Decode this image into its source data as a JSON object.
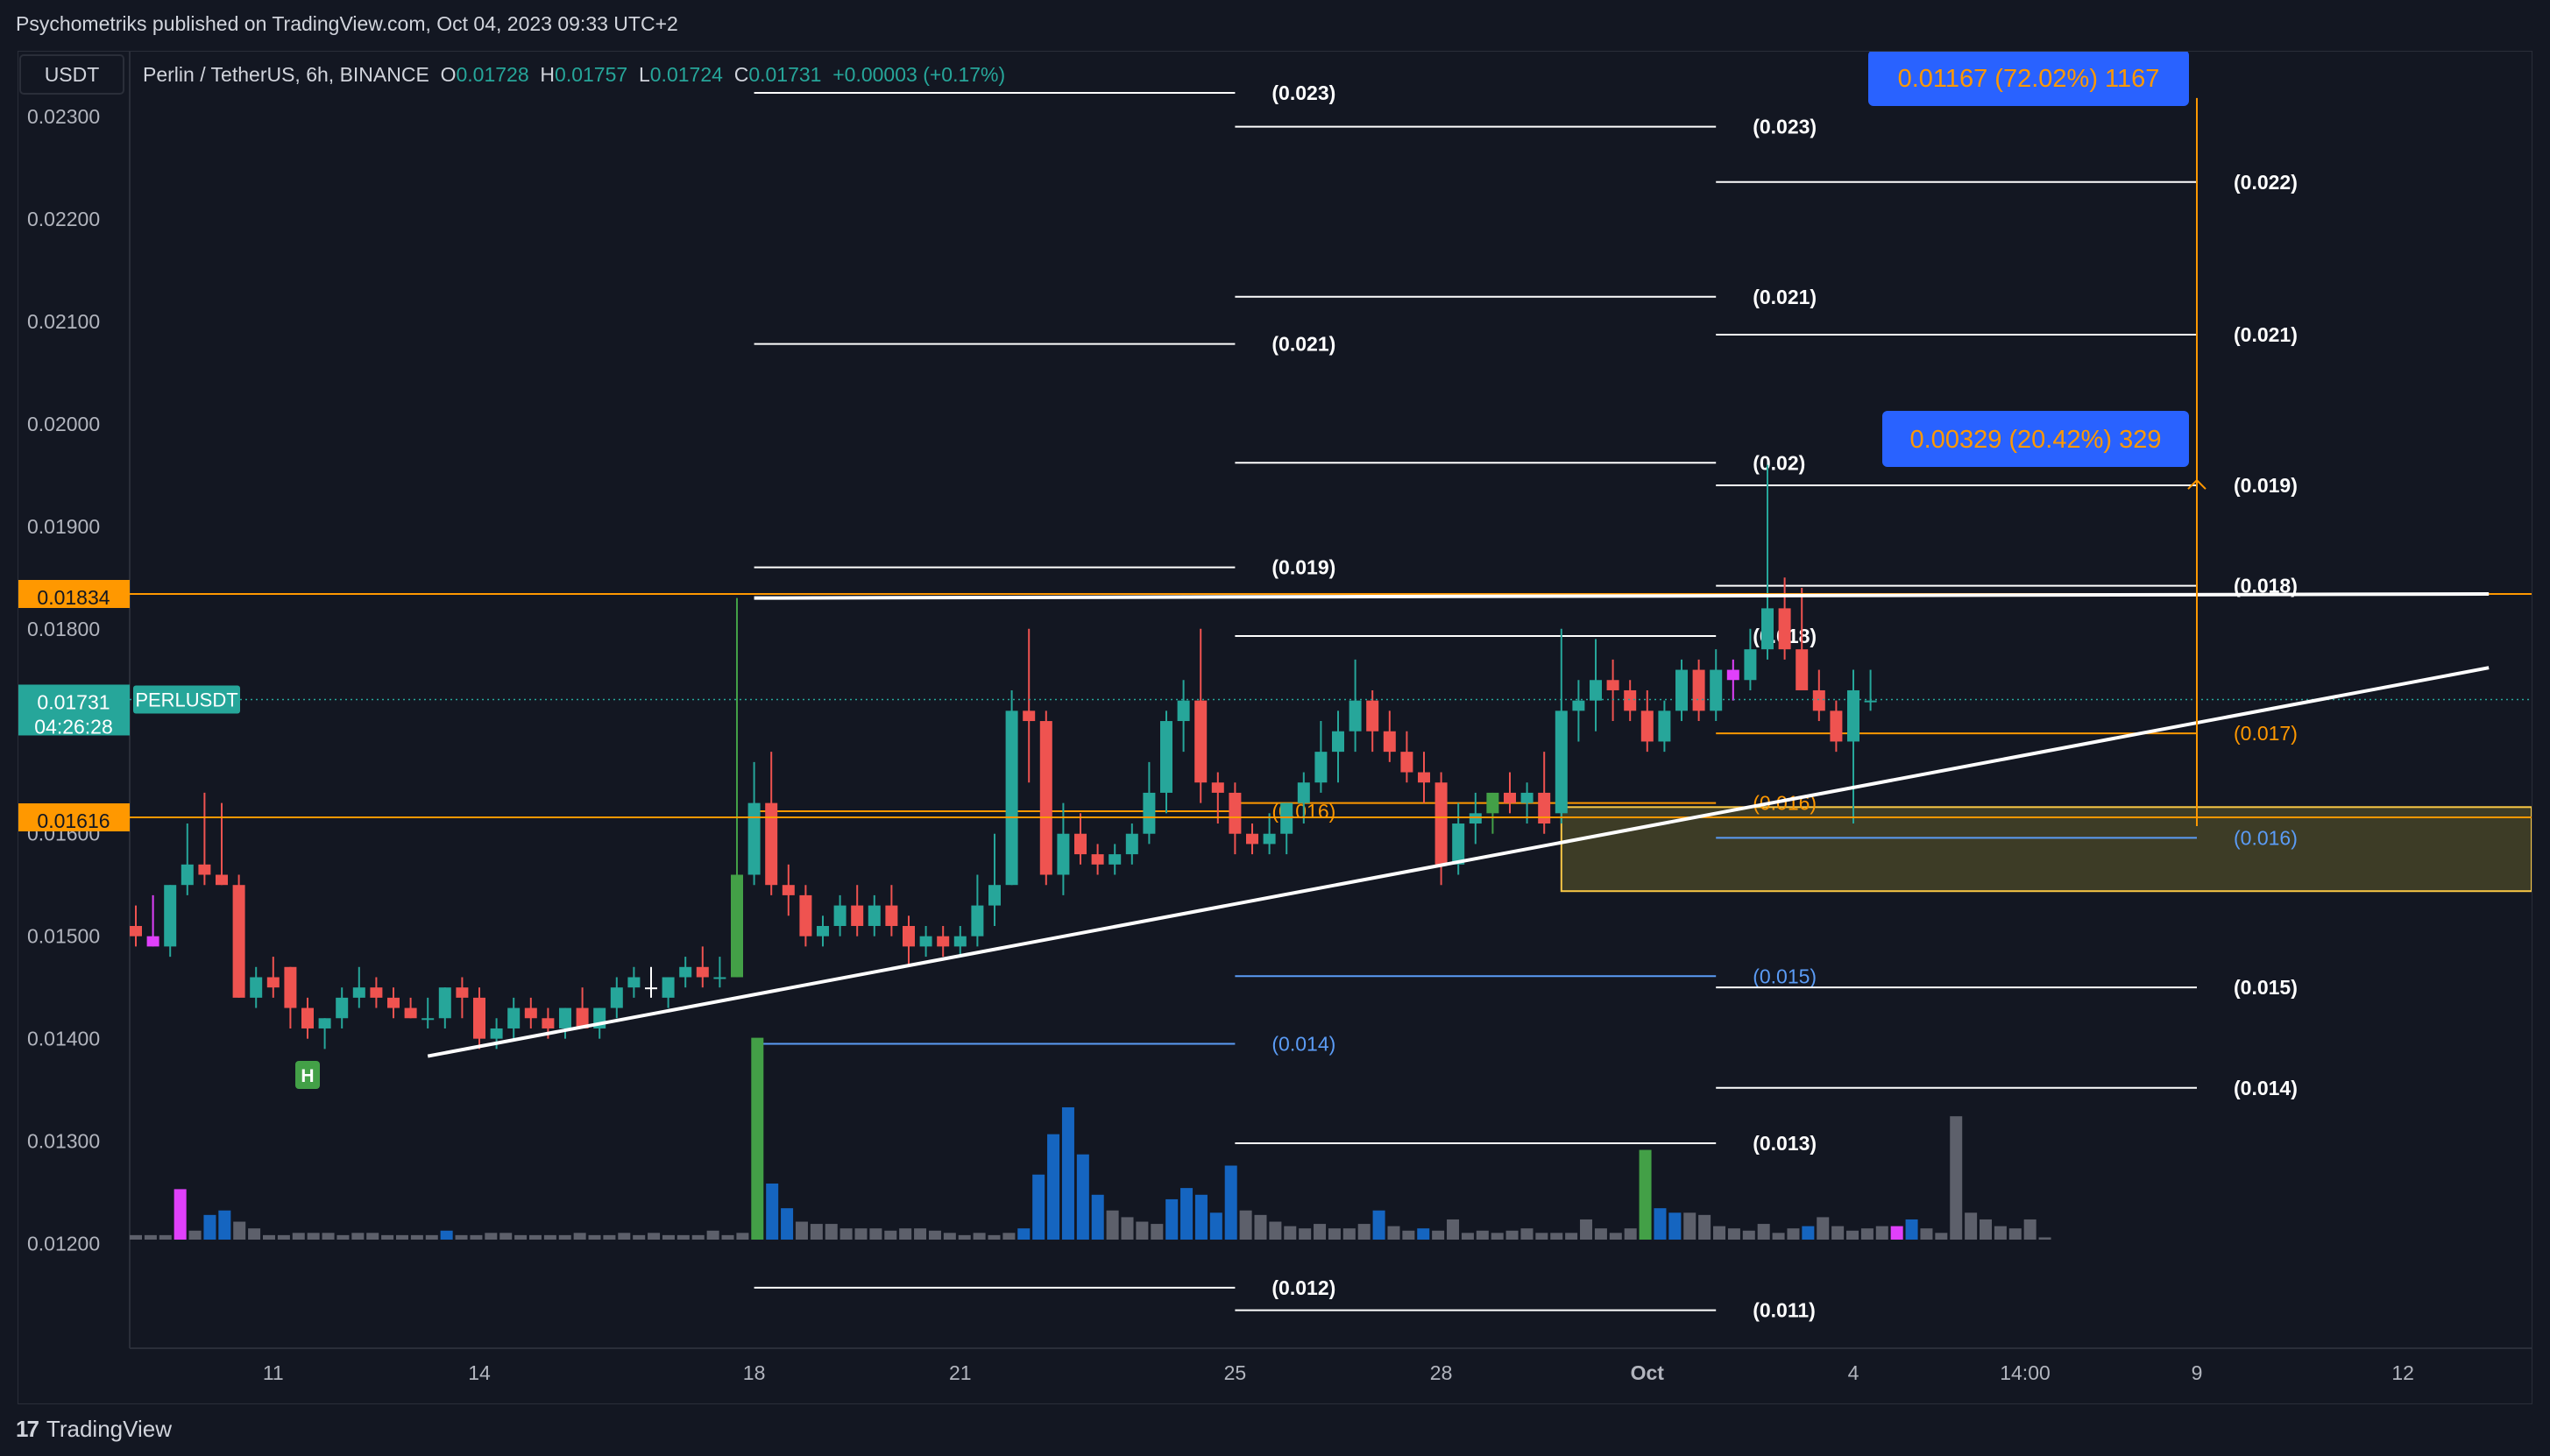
{
  "header": {
    "published": "Psychometriks published on TradingView.com, Oct 04, 2023 09:33 UTC+2"
  },
  "footer": {
    "brand": "TradingView",
    "brand_mark": "17"
  },
  "legend": {
    "currency_button": "USDT",
    "symbol": "Perlin / TetherUS, 6h, BINANCE",
    "o_label": "O",
    "o_value": "0.01728",
    "h_label": "H",
    "h_value": "0.01757",
    "l_label": "L",
    "l_value": "0.01724",
    "c_label": "C",
    "c_value": "0.01731",
    "change": "+0.00003 (+0.17%)"
  },
  "price_badges": {
    "current_price": "0.01731",
    "countdown": "04:26:28",
    "symbol_tag": "PERLUSDT",
    "level_high": "0.01834",
    "level_low": "0.01616"
  },
  "measure_labels": [
    {
      "text": "0.01167 (72.02%) 1167"
    },
    {
      "text": "0.00329 (20.42%) 329"
    }
  ],
  "marker": {
    "text": "H"
  },
  "colors": {
    "background": "#131722",
    "up": "#26a69a",
    "down": "#ef5350",
    "highlight_green": "#43a047",
    "highlight_magenta": "#e040fb",
    "volume_blue": "#1565c0",
    "volume_gray": "#5d606b",
    "orange": "#ff9800",
    "measure_blue": "#2962ff",
    "fib_blue": "#5b9cf6"
  },
  "chart_data": {
    "type": "candlestick",
    "symbol": "Perlin / TetherUS, 6h, BINANCE",
    "y_ticks": [
      "0.02300",
      "0.02200",
      "0.02100",
      "0.02000",
      "0.01900",
      "0.01800",
      "0.01600",
      "0.01500",
      "0.01400",
      "0.01300",
      "0.01200"
    ],
    "y_tick_values": [
      0.023,
      0.022,
      0.021,
      0.02,
      0.019,
      0.018,
      0.016,
      0.015,
      0.014,
      0.013,
      0.012
    ],
    "x_ticks": [
      {
        "label": "11",
        "bar": 8
      },
      {
        "label": "14",
        "bar": 20
      },
      {
        "label": "18",
        "bar": 36
      },
      {
        "label": "21",
        "bar": 48
      },
      {
        "label": "25",
        "bar": 64
      },
      {
        "label": "28",
        "bar": 76
      },
      {
        "label": "Oct",
        "bar": 88
      },
      {
        "label": "4",
        "bar": 100
      },
      {
        "label": "14:00",
        "bar": 110
      },
      {
        "label": "9",
        "bar": 120
      },
      {
        "label": "12",
        "bar": 132
      }
    ],
    "ohlc": [
      [
        0.0151,
        0.0153,
        0.0149,
        0.015
      ],
      [
        0.015,
        0.0154,
        0.0149,
        0.0149
      ],
      [
        0.0149,
        0.0155,
        0.0148,
        0.0155
      ],
      [
        0.0155,
        0.0161,
        0.0154,
        0.0157
      ],
      [
        0.0157,
        0.0164,
        0.0155,
        0.0156
      ],
      [
        0.0156,
        0.0163,
        0.0155,
        0.0155
      ],
      [
        0.0155,
        0.0156,
        0.0144,
        0.0144
      ],
      [
        0.0144,
        0.0147,
        0.0143,
        0.0146
      ],
      [
        0.0146,
        0.0148,
        0.0144,
        0.0145
      ],
      [
        0.0147,
        0.0147,
        0.0141,
        0.0143
      ],
      [
        0.0143,
        0.0144,
        0.014,
        0.0141
      ],
      [
        0.0141,
        0.0142,
        0.0139,
        0.0142
      ],
      [
        0.0142,
        0.0145,
        0.0141,
        0.0144
      ],
      [
        0.0144,
        0.0147,
        0.0143,
        0.0145
      ],
      [
        0.0145,
        0.0146,
        0.0143,
        0.0144
      ],
      [
        0.0144,
        0.0145,
        0.0142,
        0.0143
      ],
      [
        0.0143,
        0.0144,
        0.0142,
        0.0142
      ],
      [
        0.0142,
        0.0144,
        0.0141,
        0.0142
      ],
      [
        0.0142,
        0.0145,
        0.0141,
        0.0145
      ],
      [
        0.0145,
        0.0146,
        0.0142,
        0.0144
      ],
      [
        0.0144,
        0.0145,
        0.0139,
        0.014
      ],
      [
        0.014,
        0.0142,
        0.0139,
        0.0141
      ],
      [
        0.0141,
        0.0144,
        0.014,
        0.0143
      ],
      [
        0.0143,
        0.0144,
        0.0141,
        0.0142
      ],
      [
        0.0142,
        0.0143,
        0.014,
        0.0141
      ],
      [
        0.0141,
        0.0143,
        0.014,
        0.0143
      ],
      [
        0.0143,
        0.0145,
        0.0141,
        0.0141
      ],
      [
        0.0141,
        0.0143,
        0.014,
        0.0143
      ],
      [
        0.0143,
        0.0146,
        0.0142,
        0.0145
      ],
      [
        0.0145,
        0.0147,
        0.0144,
        0.0146
      ],
      [
        0.0145,
        0.0147,
        0.0144,
        0.0145
      ],
      [
        0.0144,
        0.0146,
        0.0143,
        0.0146
      ],
      [
        0.0146,
        0.0148,
        0.0145,
        0.0147
      ],
      [
        0.0147,
        0.0149,
        0.0145,
        0.0146
      ],
      [
        0.0146,
        0.0148,
        0.0145,
        0.0146
      ],
      [
        0.0146,
        0.0183,
        0.0146,
        0.0156
      ],
      [
        0.0156,
        0.0167,
        0.0155,
        0.0163
      ],
      [
        0.0163,
        0.0168,
        0.0154,
        0.0155
      ],
      [
        0.0155,
        0.0157,
        0.0152,
        0.0154
      ],
      [
        0.0154,
        0.0155,
        0.0149,
        0.015
      ],
      [
        0.015,
        0.0152,
        0.0149,
        0.0151
      ],
      [
        0.0151,
        0.0154,
        0.015,
        0.0153
      ],
      [
        0.0153,
        0.0155,
        0.015,
        0.0151
      ],
      [
        0.0151,
        0.0154,
        0.015,
        0.0153
      ],
      [
        0.0153,
        0.0155,
        0.015,
        0.0151
      ],
      [
        0.0151,
        0.0152,
        0.0147,
        0.0149
      ],
      [
        0.0149,
        0.0151,
        0.0148,
        0.015
      ],
      [
        0.015,
        0.0151,
        0.0148,
        0.0149
      ],
      [
        0.0149,
        0.0151,
        0.0148,
        0.015
      ],
      [
        0.015,
        0.0156,
        0.0149,
        0.0153
      ],
      [
        0.0153,
        0.016,
        0.0151,
        0.0155
      ],
      [
        0.0155,
        0.0174,
        0.0155,
        0.0172
      ],
      [
        0.0172,
        0.018,
        0.0165,
        0.0171
      ],
      [
        0.0171,
        0.0172,
        0.0155,
        0.0156
      ],
      [
        0.0156,
        0.0163,
        0.0154,
        0.016
      ],
      [
        0.016,
        0.0162,
        0.0157,
        0.0158
      ],
      [
        0.0158,
        0.0159,
        0.0156,
        0.0157
      ],
      [
        0.0157,
        0.0159,
        0.0156,
        0.0158
      ],
      [
        0.0158,
        0.0161,
        0.0157,
        0.016
      ],
      [
        0.016,
        0.0167,
        0.0159,
        0.0164
      ],
      [
        0.0164,
        0.0172,
        0.0162,
        0.0171
      ],
      [
        0.0171,
        0.0175,
        0.0168,
        0.0173
      ],
      [
        0.0173,
        0.018,
        0.0163,
        0.0165
      ],
      [
        0.0165,
        0.0166,
        0.0161,
        0.0164
      ],
      [
        0.0164,
        0.0165,
        0.0158,
        0.016
      ],
      [
        0.016,
        0.0161,
        0.0158,
        0.0159
      ],
      [
        0.0159,
        0.0162,
        0.0158,
        0.016
      ],
      [
        0.016,
        0.0163,
        0.0158,
        0.0163
      ],
      [
        0.0163,
        0.0166,
        0.0161,
        0.0165
      ],
      [
        0.0165,
        0.0171,
        0.0164,
        0.0168
      ],
      [
        0.0168,
        0.0172,
        0.0165,
        0.017
      ],
      [
        0.017,
        0.0177,
        0.0168,
        0.0173
      ],
      [
        0.0173,
        0.0174,
        0.0168,
        0.017
      ],
      [
        0.017,
        0.0172,
        0.0167,
        0.0168
      ],
      [
        0.0168,
        0.017,
        0.0165,
        0.0166
      ],
      [
        0.0166,
        0.0168,
        0.0163,
        0.0165
      ],
      [
        0.0165,
        0.0166,
        0.0155,
        0.0157
      ],
      [
        0.0157,
        0.0163,
        0.0156,
        0.0161
      ],
      [
        0.0161,
        0.0164,
        0.0159,
        0.0162
      ],
      [
        0.0162,
        0.0164,
        0.016,
        0.0164
      ],
      [
        0.0164,
        0.0166,
        0.0162,
        0.0163
      ],
      [
        0.0163,
        0.0165,
        0.0161,
        0.0164
      ],
      [
        0.0164,
        0.0168,
        0.016,
        0.0161
      ],
      [
        0.0162,
        0.018,
        0.0161,
        0.0172
      ],
      [
        0.0172,
        0.0175,
        0.0169,
        0.0173
      ],
      [
        0.0173,
        0.0179,
        0.017,
        0.0175
      ],
      [
        0.0175,
        0.0177,
        0.0171,
        0.0174
      ],
      [
        0.0174,
        0.0175,
        0.0171,
        0.0172
      ],
      [
        0.0172,
        0.0174,
        0.0168,
        0.0169
      ],
      [
        0.0169,
        0.0173,
        0.0168,
        0.0172
      ],
      [
        0.0172,
        0.0177,
        0.0171,
        0.0176
      ],
      [
        0.0176,
        0.0177,
        0.0171,
        0.0172
      ],
      [
        0.0172,
        0.0178,
        0.0171,
        0.0176
      ],
      [
        0.0176,
        0.0177,
        0.0173,
        0.0175
      ],
      [
        0.0175,
        0.018,
        0.0174,
        0.0178
      ],
      [
        0.0178,
        0.0196,
        0.0177,
        0.0182
      ],
      [
        0.0182,
        0.0185,
        0.0177,
        0.0178
      ],
      [
        0.0178,
        0.0184,
        0.0175,
        0.0174
      ],
      [
        0.0174,
        0.0176,
        0.0171,
        0.0172
      ],
      [
        0.0172,
        0.0173,
        0.0168,
        0.0169
      ],
      [
        0.0169,
        0.0176,
        0.0161,
        0.0174
      ],
      [
        0.0173,
        0.0176,
        0.0172,
        0.0173
      ]
    ],
    "highlight": {
      "green": [
        35,
        79
      ],
      "magenta": [
        1,
        93
      ],
      "white": [
        30
      ]
    },
    "volume": [
      4,
      4,
      4,
      45,
      8,
      22,
      26,
      16,
      10,
      4,
      4,
      6,
      6,
      6,
      4,
      6,
      6,
      4,
      4,
      4,
      4,
      8,
      4,
      4,
      6,
      6,
      4,
      4,
      4,
      4,
      6,
      4,
      4,
      6,
      4,
      6,
      4,
      4,
      4,
      8,
      4,
      6,
      180,
      50,
      28,
      16,
      14,
      14,
      10,
      10,
      10,
      8,
      10,
      10,
      8,
      6,
      4,
      6,
      4,
      6,
      10,
      58,
      94,
      118,
      76,
      40,
      26,
      20,
      16,
      14,
      36,
      46,
      40,
      24,
      66,
      26,
      22,
      16,
      12,
      10,
      14,
      10,
      10,
      14,
      26,
      12,
      8,
      10,
      8,
      18,
      6,
      8,
      6,
      8,
      10,
      6,
      6,
      6,
      18,
      10,
      6,
      10,
      80,
      28,
      24,
      24,
      22,
      12,
      10,
      8,
      14,
      6,
      10,
      12,
      20,
      12,
      8,
      10,
      12,
      12,
      18,
      10,
      6,
      110,
      24,
      18,
      12,
      10,
      18,
      2
    ],
    "horizontal_levels": [
      0.01834,
      0.01616
    ],
    "current_price": 0.01731,
    "trendline": {
      "from": [
        17,
        0.01383
      ],
      "to": [
        137,
        0.01762
      ]
    },
    "resistance_line": {
      "from": [
        36,
        0.0183
      ],
      "to": [
        137,
        0.01834
      ]
    },
    "zone": {
      "from_bar": 83,
      "to_bar": 137,
      "top": 0.01626,
      "bottom": 0.01544
    },
    "fib_sets": [
      {
        "x_from": 36,
        "x_to": 64,
        "levels": [
          {
            "label": "(0.023)",
            "value": 0.02323,
            "color": "white"
          },
          {
            "label": "(0.021)",
            "value": 0.02078,
            "color": "white"
          },
          {
            "label": "(0.019)",
            "value": 0.0186,
            "color": "white"
          },
          {
            "label": "(0.016)",
            "value": 0.01622,
            "color": "orange"
          },
          {
            "label": "(0.014)",
            "value": 0.01395,
            "color": "blue"
          },
          {
            "label": "(0.012)",
            "value": 0.01157,
            "color": "white"
          }
        ]
      },
      {
        "x_from": 64,
        "x_to": 92,
        "levels": [
          {
            "label": "(0.023)",
            "value": 0.0229,
            "color": "white"
          },
          {
            "label": "(0.021)",
            "value": 0.02124,
            "color": "white"
          },
          {
            "label": "(0.02)",
            "value": 0.01962,
            "color": "white"
          },
          {
            "label": "(0.018)",
            "value": 0.01793,
            "color": "white"
          },
          {
            "label": "(0.016)",
            "value": 0.0163,
            "color": "orange"
          },
          {
            "label": "(0.015)",
            "value": 0.01461,
            "color": "blue"
          },
          {
            "label": "(0.013)",
            "value": 0.01298,
            "color": "white"
          },
          {
            "label": "(0.011)",
            "value": 0.01135,
            "color": "white"
          }
        ]
      },
      {
        "x_from": 92,
        "x_to": 120,
        "levels": [
          {
            "label": "(0.022)",
            "value": 0.02236,
            "color": "white"
          },
          {
            "label": "(0.021)",
            "value": 0.02087,
            "color": "white"
          },
          {
            "label": "(0.019)",
            "value": 0.0194,
            "color": "white"
          },
          {
            "label": "(0.018)",
            "value": 0.01842,
            "color": "white"
          },
          {
            "label": "(0.017)",
            "value": 0.01698,
            "color": "orange"
          },
          {
            "label": "(0.016)",
            "value": 0.01596,
            "color": "blue"
          },
          {
            "label": "(0.015)",
            "value": 0.0145,
            "color": "white"
          },
          {
            "label": "(0.014)",
            "value": 0.01352,
            "color": "white"
          }
        ]
      }
    ],
    "measure": {
      "bar": 120,
      "from": 0.01616,
      "to": 0.02318,
      "mid_arrow": 0.01945
    },
    "h_marker_bar": 10,
    "ylim": [
      0.01098,
      0.02325
    ]
  }
}
